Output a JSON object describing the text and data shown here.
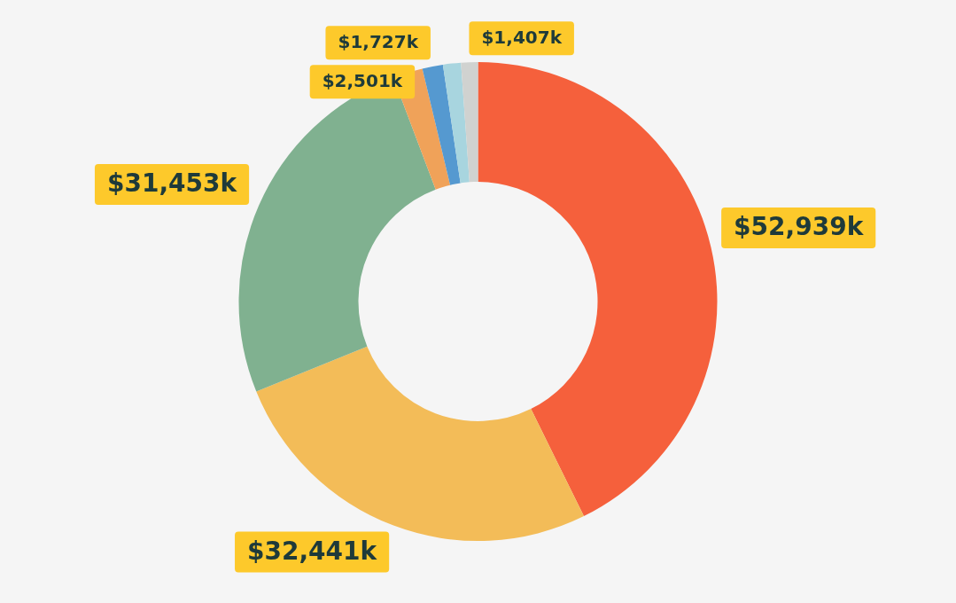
{
  "chart_data": {
    "type": "donut",
    "categories": [
      null,
      null,
      null,
      null,
      null,
      null,
      null
    ],
    "values": [
      52939,
      32441,
      31453,
      2501,
      1727,
      1500,
      1407
    ],
    "colors": [
      "#f5603c",
      "#f3bc58",
      "#80b190",
      "#f0a259",
      "#5599d0",
      "#a8d5df",
      "#d0d2d0"
    ],
    "value_labels": [
      "$52,939k",
      "$32,441k",
      "$31,453k",
      "$2,501k",
      "$1,727k",
      null,
      "$1,407k"
    ],
    "legend": false
  }
}
